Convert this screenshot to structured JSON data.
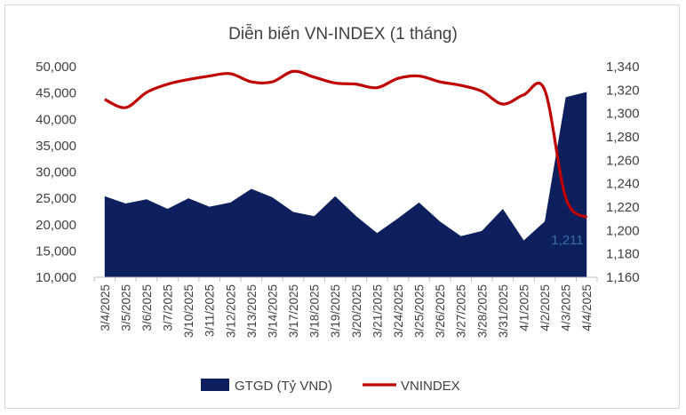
{
  "chart_data": {
    "type": "area+line",
    "title": "Diễn biến VN-INDEX (1 tháng)",
    "categories": [
      "3/4/2025",
      "3/5/2025",
      "3/6/2025",
      "3/7/2025",
      "3/10/2025",
      "3/11/2025",
      "3/12/2025",
      "3/13/2025",
      "3/14/2025",
      "3/17/2025",
      "3/18/2025",
      "3/19/2025",
      "3/20/2025",
      "3/21/2025",
      "3/24/2025",
      "3/25/2025",
      "3/26/2025",
      "3/27/2025",
      "3/28/2025",
      "3/31/2025",
      "4/1/2025",
      "4/2/2025",
      "4/3/2025",
      "4/4/2025"
    ],
    "series": [
      {
        "name": "GTGD (Tỷ VND)",
        "type": "area",
        "axis": "left",
        "color": "#0d1f5c",
        "values": [
          25400,
          24000,
          24800,
          23000,
          25000,
          23400,
          24200,
          26800,
          25200,
          22400,
          21600,
          25400,
          21600,
          18400,
          21200,
          24200,
          20600,
          17800,
          18800,
          23000,
          17000,
          20600,
          44200,
          45200
        ]
      },
      {
        "name": "VNINDEX",
        "type": "line",
        "axis": "right",
        "color": "#c00000",
        "values": [
          1312,
          1305,
          1318,
          1325,
          1329,
          1332,
          1334,
          1327,
          1327,
          1336,
          1331,
          1326,
          1325,
          1322,
          1330,
          1332,
          1327,
          1324,
          1319,
          1308,
          1316,
          1320,
          1228,
          1211
        ]
      }
    ],
    "y_left": {
      "min": 10000,
      "max": 50000,
      "ticks": [
        "10,000",
        "15,000",
        "20,000",
        "25,000",
        "30,000",
        "35,000",
        "40,000",
        "45,000",
        "50,000"
      ]
    },
    "y_right": {
      "min": 1160,
      "max": 1340,
      "ticks": [
        "1,160",
        "1,180",
        "1,200",
        "1,220",
        "1,240",
        "1,260",
        "1,280",
        "1,300",
        "1,320",
        "1,340"
      ]
    },
    "data_label": {
      "text": "1,211"
    },
    "legend": {
      "position": "bottom"
    }
  }
}
